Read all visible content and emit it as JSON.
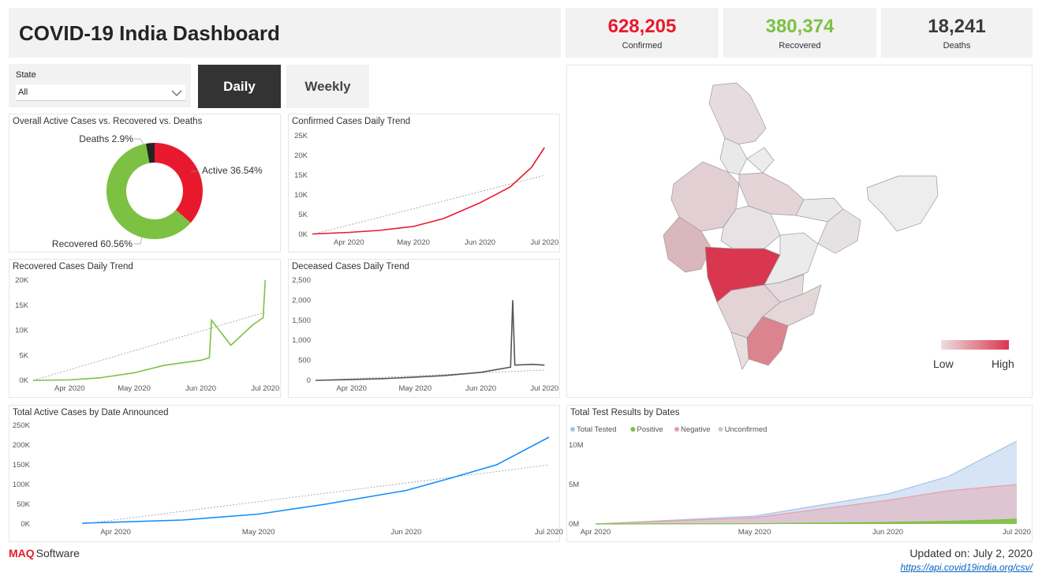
{
  "title": "COVID-19 India Dashboard",
  "kpis": {
    "confirmed": {
      "value": "628,205",
      "label": "Confirmed",
      "color": "#e8192c"
    },
    "recovered": {
      "value": "380,374",
      "label": "Recovered",
      "color": "#7cc142"
    },
    "deaths": {
      "value": "18,241",
      "label": "Deaths",
      "color": "#3a3a3a"
    }
  },
  "filter": {
    "label": "State",
    "value": "All",
    "icon": "chevron-down-icon"
  },
  "toggle": {
    "daily": "Daily",
    "weekly": "Weekly",
    "active": "daily"
  },
  "map": {
    "legend_low": "Low",
    "legend_high": "High"
  },
  "footer": {
    "brand_prefix": "MAQ",
    "brand_suffix": "Software",
    "updated_label": "Updated on:",
    "updated_value": "July 2, 2020",
    "source": "https://api.covid19india.org/csv/"
  },
  "charts": {
    "donut": {
      "title": "Overall Active Cases vs. Recovered vs. Deaths",
      "labels": {
        "deaths": "Deaths 2.9%",
        "active": "Active 36.54%",
        "recovered": "Recovered 60.56%"
      }
    },
    "confirmed": {
      "title": "Confirmed Cases Daily Trend",
      "yticks": [
        "25K",
        "20K",
        "15K",
        "10K",
        "5K",
        "0K"
      ],
      "xticks": [
        "Apr 2020",
        "May 2020",
        "Jun 2020",
        "Jul 2020"
      ]
    },
    "recovered": {
      "title": "Recovered Cases Daily Trend",
      "yticks": [
        "20K",
        "15K",
        "10K",
        "5K",
        "0K"
      ],
      "xticks": [
        "Apr 2020",
        "May 2020",
        "Jun 2020",
        "Jul 2020"
      ]
    },
    "deceased": {
      "title": "Deceased Cases Daily Trend",
      "yticks": [
        "2,500",
        "2,000",
        "1,500",
        "1,000",
        "500",
        "0"
      ],
      "xticks": [
        "Apr 2020",
        "May 2020",
        "Jun 2020",
        "Jul 2020"
      ]
    },
    "active": {
      "title": "Total Active Cases by Date Announced",
      "yticks": [
        "250K",
        "200K",
        "150K",
        "100K",
        "50K",
        "0K"
      ],
      "xticks": [
        "Apr 2020",
        "May 2020",
        "Jun 2020",
        "Jul 2020"
      ]
    },
    "tests": {
      "title": "Total Test Results by Dates",
      "yticks": [
        "10M",
        "5M",
        "0M"
      ],
      "xticks": [
        "Apr 2020",
        "May 2020",
        "Jun 2020",
        "Jul 2020"
      ],
      "legend": [
        "Total Tested",
        "Positive",
        "Negative",
        "Unconfirmed"
      ]
    }
  },
  "chart_data": [
    {
      "type": "pie",
      "title": "Overall Active Cases vs. Recovered vs. Deaths",
      "categories": [
        "Active",
        "Recovered",
        "Deaths"
      ],
      "values": [
        36.54,
        60.56,
        2.9
      ],
      "colors": [
        "#e8192c",
        "#7cc142",
        "#252423"
      ]
    },
    {
      "type": "line",
      "title": "Confirmed Cases Daily Trend",
      "ylim": [
        0,
        25000
      ],
      "color": "#e8192c",
      "x": [
        "2020-03-15",
        "2020-04-01",
        "2020-04-15",
        "2020-05-01",
        "2020-05-15",
        "2020-06-01",
        "2020-06-15",
        "2020-06-20",
        "2020-06-25",
        "2020-07-01"
      ],
      "values": [
        100,
        500,
        1000,
        2000,
        4000,
        8000,
        12000,
        14500,
        17000,
        22000
      ]
    },
    {
      "type": "line",
      "title": "Recovered Cases Daily Trend",
      "ylim": [
        0,
        20000
      ],
      "color": "#7cc142",
      "x": [
        "2020-03-15",
        "2020-04-01",
        "2020-04-15",
        "2020-05-01",
        "2020-05-15",
        "2020-06-01",
        "2020-06-05",
        "2020-06-06",
        "2020-06-15",
        "2020-06-25",
        "2020-06-30",
        "2020-07-01"
      ],
      "values": [
        0,
        100,
        500,
        1500,
        3000,
        4000,
        4500,
        12000,
        7000,
        11000,
        12500,
        20000
      ]
    },
    {
      "type": "line",
      "title": "Deceased Cases Daily Trend",
      "ylim": [
        0,
        2500
      ],
      "color": "#555555",
      "x": [
        "2020-03-15",
        "2020-04-01",
        "2020-04-15",
        "2020-05-01",
        "2020-05-15",
        "2020-06-01",
        "2020-06-15",
        "2020-06-16",
        "2020-06-17",
        "2020-06-25",
        "2020-07-01"
      ],
      "values": [
        0,
        20,
        40,
        80,
        120,
        200,
        330,
        2000,
        380,
        400,
        380
      ]
    },
    {
      "type": "line",
      "title": "Total Active Cases by Date Announced",
      "ylim": [
        0,
        250000
      ],
      "color": "#118dff",
      "x": [
        "2020-03-25",
        "2020-04-15",
        "2020-05-01",
        "2020-05-15",
        "2020-06-01",
        "2020-06-10",
        "2020-06-20",
        "2020-07-01"
      ],
      "values": [
        2000,
        10000,
        25000,
        50000,
        85000,
        115000,
        150000,
        220000
      ]
    },
    {
      "type": "area",
      "title": "Total Test Results by Dates",
      "ylim": [
        0,
        12000000
      ],
      "x": [
        "2020-03-25",
        "2020-05-01",
        "2020-06-01",
        "2020-06-15",
        "2020-07-01"
      ],
      "series": [
        {
          "name": "Total Tested",
          "color": "#a3c4e8",
          "values": [
            0,
            1000000,
            3800000,
            6000000,
            10500000
          ]
        },
        {
          "name": "Positive",
          "color": "#7cc142",
          "values": [
            0,
            30000,
            190000,
            330000,
            600000
          ]
        },
        {
          "name": "Negative",
          "color": "#e8a0a8",
          "values": [
            0,
            800000,
            3000000,
            4200000,
            5000000
          ]
        },
        {
          "name": "Unconfirmed",
          "color": "#c8c8c8",
          "values": [
            0,
            0,
            0,
            0,
            0
          ]
        }
      ]
    }
  ]
}
